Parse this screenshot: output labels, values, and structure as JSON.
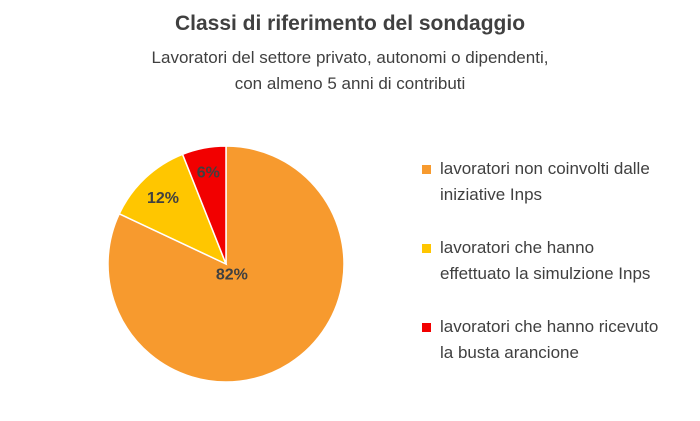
{
  "chart_data": {
    "type": "pie",
    "title": "Classi di riferimento del sondaggio",
    "subtitle": [
      "Lavoratori del settore privato, autonomi o dipendenti,",
      "con almeno 5 anni di contributi"
    ],
    "legend_position": "right",
    "slices": [
      {
        "name": "lavoratori non coinvolti dalle iniziative Inps",
        "legend_lines": [
          "lavoratori non coinvolti dalle",
          "iniziative Inps"
        ],
        "value": 82,
        "label": "82%",
        "color": "#F79A2E"
      },
      {
        "name": "lavoratori che hanno effettuato la simulzione Inps",
        "legend_lines": [
          "lavoratori che hanno",
          "effettuato la simulzione Inps"
        ],
        "value": 12,
        "label": "12%",
        "color": "#FFC600"
      },
      {
        "name": "lavoratori che hanno ricevuto la busta arancione",
        "legend_lines": [
          "lavoratori che hanno ricevuto",
          "la busta arancione"
        ],
        "value": 6,
        "label": "6%",
        "color": "#F20000"
      }
    ]
  }
}
